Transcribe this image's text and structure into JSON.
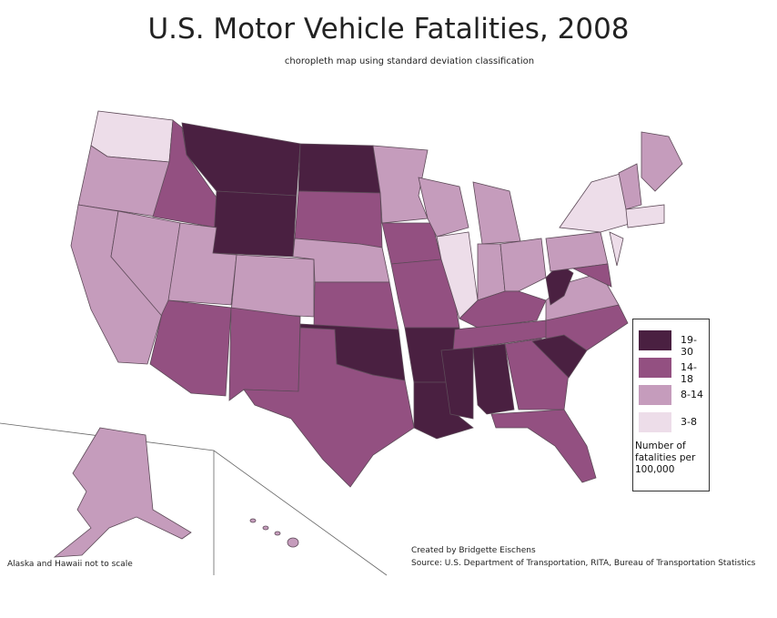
{
  "title": "U.S. Motor Vehicle Fatalities, 2008",
  "subtitle": "choropleth map using standard deviation classification",
  "legend": {
    "items": [
      {
        "label": "19-30",
        "color": "#4a2041"
      },
      {
        "label": "14-18",
        "color": "#935081"
      },
      {
        "label": "8-14",
        "color": "#c59cbc"
      },
      {
        "label": "3-8",
        "color": "#eddde9"
      }
    ],
    "title": "Number of fatalities per 100,000"
  },
  "note": "Alaska and Hawaii not to scale",
  "credits": [
    "Created by Bridgette Eischens",
    "Source: U.S. Department of Transportation, RITA, Bureau of Transportation Statistics"
  ]
}
